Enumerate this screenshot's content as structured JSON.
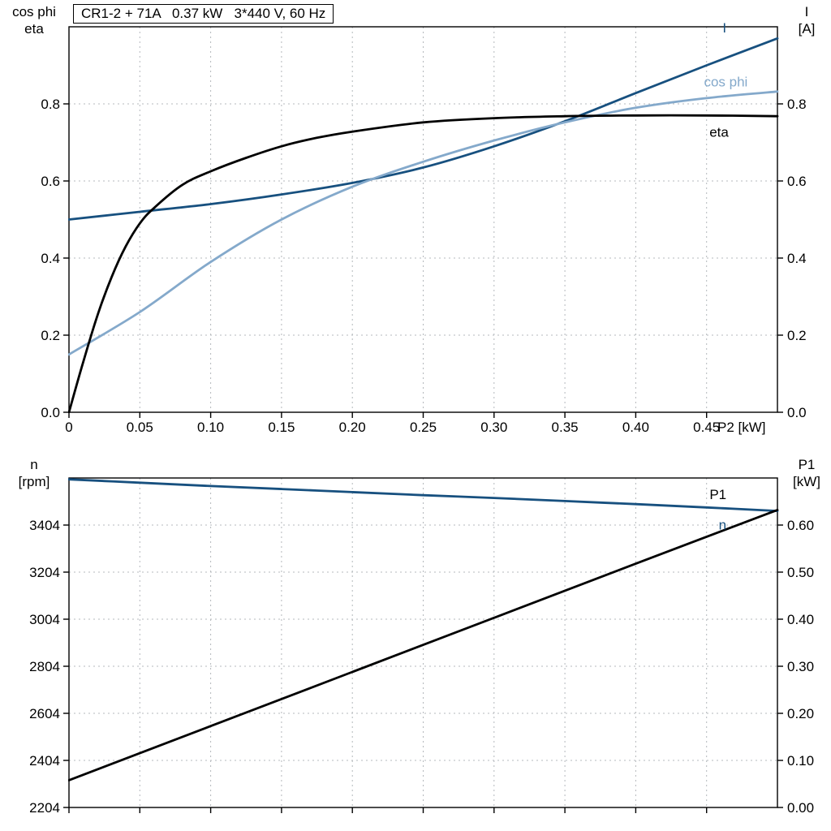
{
  "colors": {
    "dark_blue": "#17507f",
    "light_blue": "#84a9cb",
    "black": "#000000",
    "grid": "#b4b8bc",
    "frame": "#000000"
  },
  "chart_data": [
    {
      "type": "line",
      "title": "CR1-2 + 71A   0.37 kW   3*440 V, 60 Hz",
      "corner_labels": {
        "top_left": [
          "cos phi",
          "eta"
        ],
        "top_right": [
          "I",
          "[A]"
        ]
      },
      "xlabel": "P2 [kW]",
      "legend": "inline-labels",
      "grid": true,
      "xlim": [
        0,
        0.5
      ],
      "ylim": [
        0,
        1.0
      ],
      "x_ticks": [
        {
          "v": 0,
          "label": "0"
        },
        {
          "v": 0.05,
          "label": "0.05"
        },
        {
          "v": 0.1,
          "label": "0.10"
        },
        {
          "v": 0.15,
          "label": "0.15"
        },
        {
          "v": 0.2,
          "label": "0.20"
        },
        {
          "v": 0.25,
          "label": "0.25"
        },
        {
          "v": 0.3,
          "label": "0.30"
        },
        {
          "v": 0.35,
          "label": "0.35"
        },
        {
          "v": 0.4,
          "label": "0.40"
        },
        {
          "v": 0.45,
          "label": "0.45"
        }
      ],
      "y_ticks_left": [
        {
          "v": 0.0,
          "label": "0.0"
        },
        {
          "v": 0.2,
          "label": "0.2"
        },
        {
          "v": 0.4,
          "label": "0.4"
        },
        {
          "v": 0.6,
          "label": "0.6"
        },
        {
          "v": 0.8,
          "label": "0.8"
        }
      ],
      "y_ticks_right": [
        {
          "v": 0.0,
          "label": "0.0"
        },
        {
          "v": 0.2,
          "label": "0.2"
        },
        {
          "v": 0.4,
          "label": "0.4"
        },
        {
          "v": 0.6,
          "label": "0.6"
        },
        {
          "v": 0.8,
          "label": "0.8"
        }
      ],
      "series": [
        {
          "name": "I",
          "color": "dark_blue",
          "axis": "left",
          "label_at": [
            0.464,
            0.985
          ],
          "label_anchor": "end",
          "x": [
            0,
            0.05,
            0.1,
            0.15,
            0.2,
            0.25,
            0.3,
            0.35,
            0.4,
            0.45,
            0.5
          ],
          "y": [
            0.5,
            0.52,
            0.54,
            0.565,
            0.595,
            0.635,
            0.69,
            0.755,
            0.828,
            0.9,
            0.97
          ]
        },
        {
          "name": "cos phi",
          "color": "light_blue",
          "axis": "left",
          "label_at": [
            0.479,
            0.845
          ],
          "label_anchor": "end",
          "x": [
            0,
            0.05,
            0.1,
            0.15,
            0.2,
            0.25,
            0.3,
            0.35,
            0.4,
            0.45,
            0.5
          ],
          "y": [
            0.15,
            0.26,
            0.39,
            0.5,
            0.585,
            0.65,
            0.705,
            0.752,
            0.79,
            0.815,
            0.832
          ]
        },
        {
          "name": "eta",
          "color": "black",
          "axis": "left",
          "label_at": [
            0.452,
            0.715
          ],
          "label_anchor": "start",
          "x": [
            0,
            0.01,
            0.02,
            0.03,
            0.04,
            0.05,
            0.06,
            0.08,
            0.1,
            0.125,
            0.15,
            0.175,
            0.2,
            0.25,
            0.3,
            0.35,
            0.4,
            0.45,
            0.5
          ],
          "y": [
            0,
            0.13,
            0.25,
            0.35,
            0.43,
            0.49,
            0.53,
            0.59,
            0.625,
            0.66,
            0.69,
            0.712,
            0.728,
            0.752,
            0.763,
            0.768,
            0.77,
            0.77,
            0.768
          ]
        }
      ]
    },
    {
      "type": "line",
      "title": "",
      "corner_labels": {
        "top_left": [
          "n",
          "[rpm]"
        ],
        "top_right": [
          "P1",
          "[kW]"
        ]
      },
      "xlabel": "",
      "legend": "inline-labels",
      "grid": true,
      "xlim": [
        0,
        0.5
      ],
      "ylim": [
        2204,
        3604
      ],
      "ylim_right": [
        0,
        0.7
      ],
      "x_ticks": [
        {
          "v": 0,
          "label": ""
        },
        {
          "v": 0.05,
          "label": ""
        },
        {
          "v": 0.1,
          "label": ""
        },
        {
          "v": 0.15,
          "label": ""
        },
        {
          "v": 0.2,
          "label": ""
        },
        {
          "v": 0.25,
          "label": ""
        },
        {
          "v": 0.3,
          "label": ""
        },
        {
          "v": 0.35,
          "label": ""
        },
        {
          "v": 0.4,
          "label": ""
        },
        {
          "v": 0.45,
          "label": ""
        }
      ],
      "y_ticks_left": [
        {
          "v": 2204,
          "label": "2204"
        },
        {
          "v": 2404,
          "label": "2404"
        },
        {
          "v": 2604,
          "label": "2604"
        },
        {
          "v": 2804,
          "label": "2804"
        },
        {
          "v": 3004,
          "label": "3004"
        },
        {
          "v": 3204,
          "label": "3204"
        },
        {
          "v": 3404,
          "label": "3404"
        }
      ],
      "y_ticks_right": [
        {
          "v": 0.0,
          "label": "0.00"
        },
        {
          "v": 0.1,
          "label": "0.10"
        },
        {
          "v": 0.2,
          "label": "0.20"
        },
        {
          "v": 0.3,
          "label": "0.30"
        },
        {
          "v": 0.4,
          "label": "0.40"
        },
        {
          "v": 0.5,
          "label": "0.50"
        },
        {
          "v": 0.6,
          "label": "0.60"
        }
      ],
      "series": [
        {
          "name": "n",
          "color": "dark_blue",
          "axis": "left",
          "label_at": [
            0.464,
            3385
          ],
          "label_anchor": "end",
          "x": [
            0,
            0.05,
            0.1,
            0.15,
            0.2,
            0.25,
            0.3,
            0.35,
            0.4,
            0.45,
            0.5
          ],
          "y": [
            3598,
            3584,
            3570,
            3557,
            3544,
            3531,
            3519,
            3506,
            3493,
            3479,
            3464
          ]
        },
        {
          "name": "P1",
          "color": "black",
          "axis": "right",
          "label_at": [
            0.464,
            0.655
          ],
          "label_anchor": "end",
          "x": [
            0,
            0.1,
            0.2,
            0.3,
            0.4,
            0.5
          ],
          "y": [
            0.058,
            0.173,
            0.288,
            0.403,
            0.518,
            0.632
          ]
        }
      ]
    }
  ]
}
